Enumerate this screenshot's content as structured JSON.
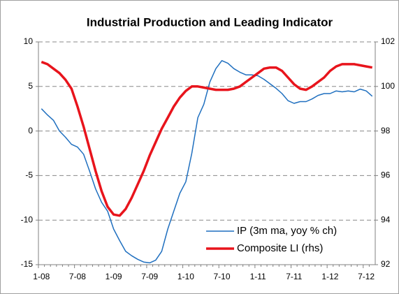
{
  "chart_data": {
    "type": "line",
    "title": "Industrial Production and Leading Indicator",
    "categories": [
      "1-08",
      null,
      null,
      null,
      null,
      null,
      "7-08",
      null,
      null,
      null,
      null,
      null,
      "1-09",
      null,
      null,
      null,
      null,
      null,
      "7-09",
      null,
      null,
      null,
      null,
      null,
      "1-10",
      null,
      null,
      null,
      null,
      null,
      "7-10",
      null,
      null,
      null,
      null,
      null,
      "1-11",
      null,
      null,
      null,
      null,
      null,
      "7-11",
      null,
      null,
      null,
      null,
      null,
      "1-12",
      null,
      null,
      null,
      null,
      null,
      "7-12",
      null
    ],
    "series": [
      {
        "name": "IP (3m ma, yoy % ch)",
        "color": "#1f6fbf",
        "values": [
          2.5,
          1.8,
          1.2,
          0,
          -0.7,
          -1.5,
          -1.8,
          -2.6,
          -4.5,
          -6.5,
          -8,
          -9,
          -11,
          -12.3,
          -13.5,
          -14,
          -14.4,
          -14.7,
          -14.8,
          -14.5,
          -13.5,
          -11,
          -9,
          -7,
          -5.7,
          -2.5,
          1.5,
          3,
          5.5,
          7,
          7.9,
          7.6,
          7,
          6.6,
          6.3,
          6.3,
          6.2,
          5.8,
          5.3,
          4.8,
          4.2,
          3.4,
          3.1,
          3.3,
          3.3,
          3.6,
          4,
          4.2,
          4.2,
          4.5,
          4.4,
          4.5,
          4.4,
          4.7,
          4.5,
          3.9
        ]
      },
      {
        "name": "Composite LI (rhs)",
        "color": "#e8141c",
        "axis": "y2",
        "values": [
          101.1,
          101.0,
          100.8,
          100.6,
          100.3,
          99.9,
          99.1,
          98.2,
          97.2,
          96.2,
          95.3,
          94.6,
          94.25,
          94.2,
          94.5,
          95.0,
          95.6,
          96.2,
          96.9,
          97.5,
          98.1,
          98.6,
          99.1,
          99.5,
          99.8,
          100.0,
          100.0,
          99.95,
          99.9,
          99.85,
          99.85,
          99.85,
          99.9,
          100.0,
          100.2,
          100.4,
          100.6,
          100.8,
          100.85,
          100.85,
          100.7,
          100.4,
          100.1,
          99.9,
          99.85,
          100.0,
          100.2,
          100.4,
          100.7,
          100.9,
          101.0,
          101.0,
          101.0,
          100.95,
          100.9,
          100.85
        ]
      }
    ],
    "ylim": [
      -15,
      10
    ],
    "yticks": [
      -15,
      -10,
      -5,
      0,
      5,
      10
    ],
    "y2lim": [
      92,
      102
    ],
    "y2ticks": [
      92,
      94,
      96,
      98,
      100,
      102
    ],
    "grid": true,
    "legend": "lower right"
  }
}
